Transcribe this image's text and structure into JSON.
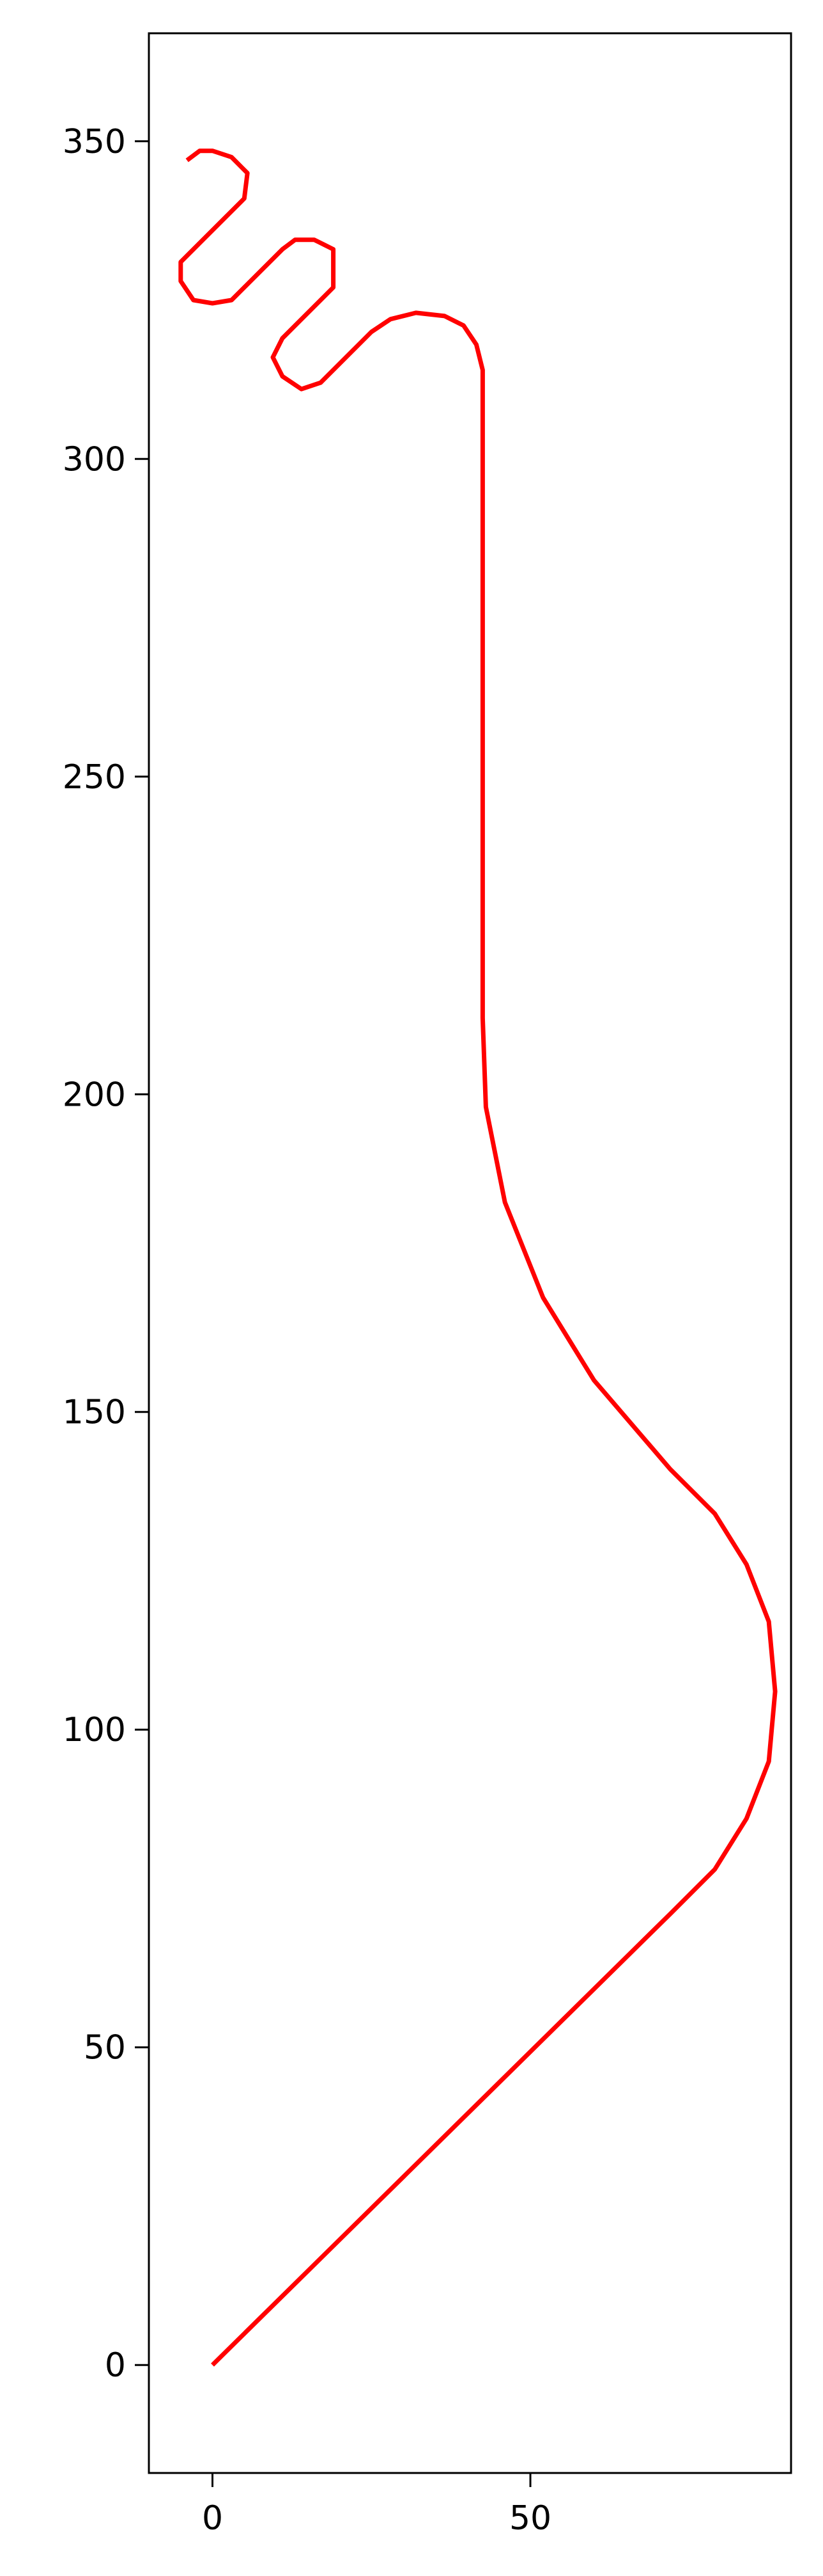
{
  "chart_data": {
    "type": "line",
    "title": "",
    "xlabel": "",
    "ylabel": "",
    "xlim": [
      -10,
      91
    ],
    "ylim": [
      -17,
      367
    ],
    "x_ticks": [
      0,
      50
    ],
    "y_ticks": [
      0,
      50,
      100,
      150,
      200,
      250,
      300,
      350
    ],
    "x_tick_labels": [
      "0",
      "50"
    ],
    "y_tick_labels": [
      "0",
      "50",
      "100",
      "150",
      "200",
      "250",
      "300",
      "350"
    ],
    "grid": false,
    "legend": "none",
    "series": [
      {
        "color": "#ff0000",
        "points": [
          [
            0,
            0
          ],
          [
            72,
            71
          ],
          [
            79,
            78
          ],
          [
            84,
            86
          ],
          [
            87.5,
            95
          ],
          [
            88.5,
            106
          ],
          [
            87.5,
            117
          ],
          [
            84,
            126
          ],
          [
            79,
            134
          ],
          [
            72,
            141
          ],
          [
            60,
            155
          ],
          [
            52,
            168
          ],
          [
            46,
            183
          ],
          [
            43,
            198
          ],
          [
            42.5,
            212
          ],
          [
            42.5,
            314
          ],
          [
            41.5,
            318
          ],
          [
            39.5,
            321
          ],
          [
            36.5,
            322.5
          ],
          [
            32,
            323
          ],
          [
            28,
            322
          ],
          [
            25,
            320
          ],
          [
            17,
            312
          ],
          [
            14,
            311
          ],
          [
            11,
            313
          ],
          [
            9.5,
            316
          ],
          [
            11,
            319
          ],
          [
            19,
            327
          ],
          [
            19,
            333
          ],
          [
            16,
            334.5
          ],
          [
            13,
            334.5
          ],
          [
            11,
            333
          ],
          [
            3,
            325
          ],
          [
            0,
            324.5
          ],
          [
            -3,
            325
          ],
          [
            -5,
            328
          ],
          [
            -5,
            331
          ],
          [
            -3,
            333
          ],
          [
            5,
            341
          ],
          [
            5.5,
            345
          ],
          [
            3,
            347.5
          ],
          [
            0,
            348.5
          ],
          [
            -2,
            348.5
          ],
          [
            -4,
            347
          ]
        ]
      }
    ]
  }
}
